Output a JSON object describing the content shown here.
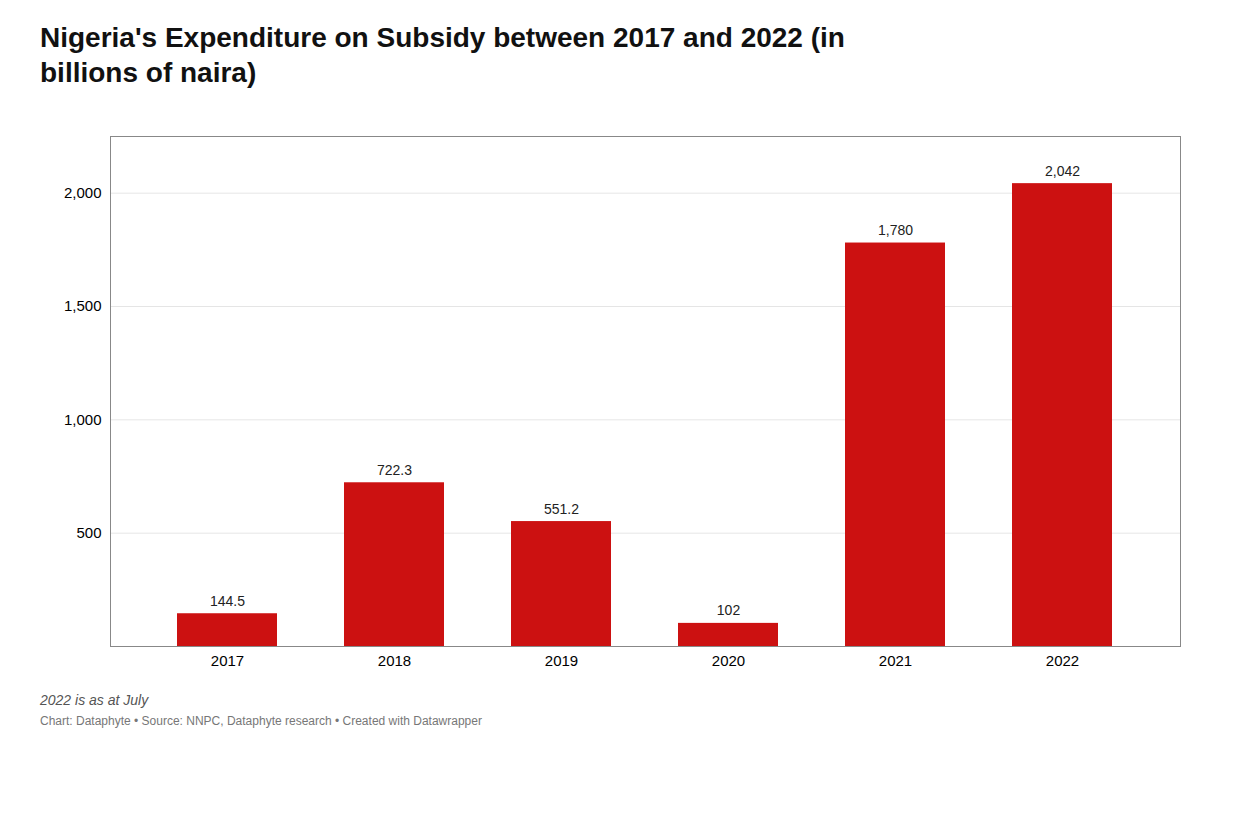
{
  "chart_data": {
    "type": "bar",
    "title": "Nigeria's Expenditure on Subsidy between 2017 and 2022 (in\nbillions of naira)",
    "categories": [
      "2017",
      "2018",
      "2019",
      "2020",
      "2021",
      "2022"
    ],
    "values": [
      144.5,
      722.3,
      551.2,
      102,
      1780,
      2042
    ],
    "value_labels": [
      "144.5",
      "722.3",
      "551.2",
      "102",
      "1,780",
      "2,042"
    ],
    "data_labels": true,
    "color": "#cc1111",
    "ylim": [
      0,
      2250
    ],
    "yticks": [
      500,
      {
        "value": 1000,
        "label": "1,000"
      },
      {
        "value": 1500,
        "label": "1,500"
      },
      {
        "value": 2000,
        "label": "2,000"
      }
    ],
    "grid": true,
    "annotations": [
      "2022 is as at July",
      "Chart: Dataphyte • Source: NNPC, Dataphyte research • Created with Datawrapper"
    ]
  }
}
